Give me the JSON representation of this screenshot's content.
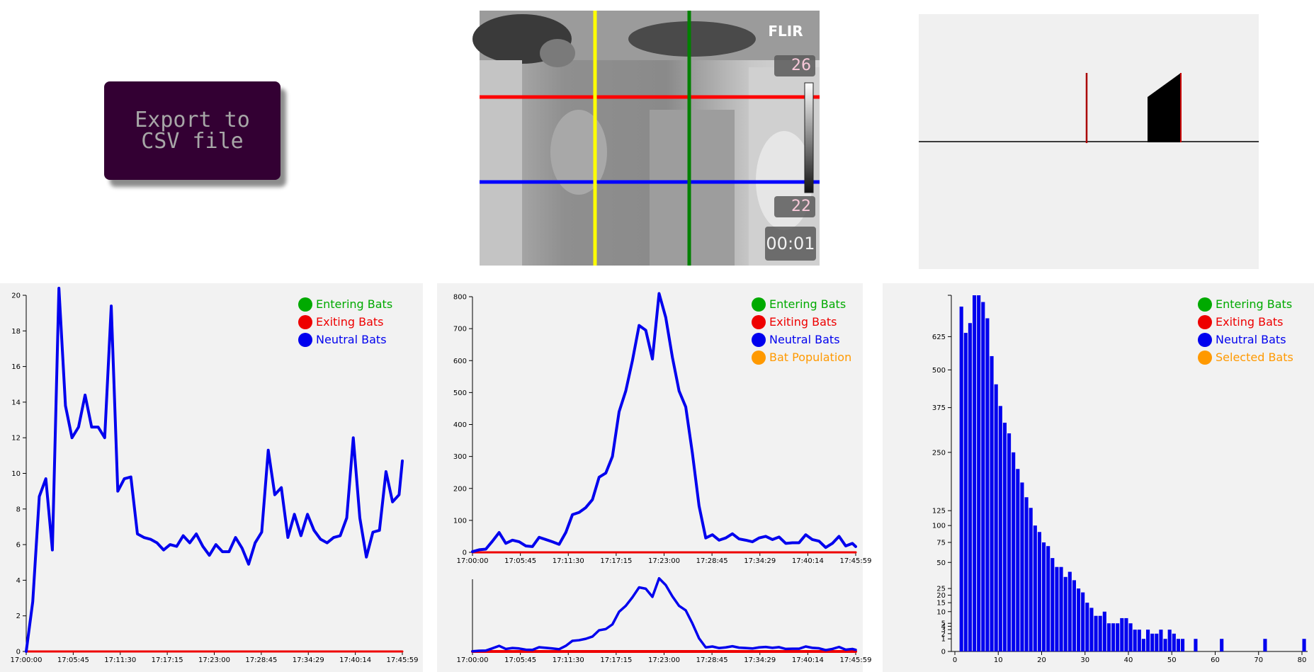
{
  "export_button": {
    "label": "Export to\nCSV file"
  },
  "thermal": {
    "brand": "FLIR",
    "scale_max": "26",
    "scale_min": "22",
    "timer": "00:01",
    "line_colors": {
      "horizontal_top": "#ff0000",
      "horizontal_bottom": "#0000ff",
      "vertical_left": "#ffff00",
      "vertical_right": "#008000"
    }
  },
  "colors": {
    "entering": "#00aa00",
    "exiting": "#ee0000",
    "neutral": "#0000ee",
    "orange": "#ff9900",
    "panel_bg": "#f2f2f2"
  },
  "legend_panel1": [
    {
      "label": "Entering Bats",
      "color": "#00aa00"
    },
    {
      "label": "Exiting Bats",
      "color": "#ee0000"
    },
    {
      "label": "Neutral Bats",
      "color": "#0000ee"
    }
  ],
  "legend_panel2": [
    {
      "label": "Entering Bats",
      "color": "#00aa00"
    },
    {
      "label": "Exiting Bats",
      "color": "#ee0000"
    },
    {
      "label": "Neutral Bats",
      "color": "#0000ee"
    },
    {
      "label": "Bat Population",
      "color": "#ff9900"
    }
  ],
  "legend_panel3": [
    {
      "label": "Entering Bats",
      "color": "#00aa00"
    },
    {
      "label": "Exiting Bats",
      "color": "#ee0000"
    },
    {
      "label": "Neutral Bats",
      "color": "#0000ee"
    },
    {
      "label": "Selected Bats",
      "color": "#ff9900"
    }
  ],
  "chart_data": [
    {
      "type": "line",
      "panel": "bat-counts-line-chart",
      "x_tick_labels": [
        "17:00:00",
        "17:05:45",
        "17:11:30",
        "17:17:15",
        "17:23:00",
        "17:28:45",
        "17:34:29",
        "17:40:14",
        "17:45:59"
      ],
      "ylim": [
        0,
        20
      ],
      "y_ticks": [
        0,
        2,
        4,
        6,
        8,
        10,
        12,
        14,
        16,
        18,
        20
      ],
      "x_range_minutes": [
        0,
        46
      ],
      "series": [
        {
          "name": "Neutral Bats",
          "color": "#0000ee",
          "x_minutes": [
            0,
            0.8,
            1.6,
            2.4,
            3.2,
            4.0,
            4.8,
            5.6,
            6.4,
            7.2,
            8.0,
            8.8,
            9.6,
            10.4,
            11.2,
            12.0,
            12.8,
            13.6,
            14.4,
            15.2,
            16.0,
            16.8,
            17.6,
            18.4,
            19.2,
            20.0,
            20.8,
            21.6,
            22.4,
            23.2,
            24.0,
            24.8,
            25.6,
            26.4,
            27.2,
            28.0,
            28.8,
            29.6,
            30.4,
            31.2,
            32.0,
            32.8,
            33.6,
            34.4,
            35.2,
            36.0,
            36.8,
            37.6,
            38.4,
            39.2,
            40.0,
            40.8,
            41.6,
            42.4,
            43.2,
            44.0,
            44.8,
            45.6,
            46.0
          ],
          "values": [
            0,
            2.8,
            8.7,
            9.7,
            5.7,
            20.4,
            13.8,
            12.0,
            12.6,
            14.4,
            12.6,
            12.6,
            12.0,
            19.4,
            9.0,
            9.7,
            9.8,
            6.6,
            6.4,
            6.3,
            6.1,
            5.7,
            6.0,
            5.9,
            6.5,
            6.1,
            6.6,
            5.9,
            5.4,
            6.0,
            5.6,
            5.6,
            6.4,
            5.8,
            4.9,
            6.1,
            6.7,
            11.3,
            8.8,
            9.2,
            6.4,
            7.7,
            6.5,
            7.7,
            6.8,
            6.3,
            6.1,
            6.4,
            6.5,
            7.5,
            12.0,
            7.5,
            5.3,
            6.7,
            6.8,
            10.1,
            8.4,
            8.8,
            10.7
          ]
        },
        {
          "name": "Exiting Bats",
          "color": "#ee0000",
          "x_minutes": [
            0,
            46
          ],
          "values": [
            0,
            0
          ]
        }
      ]
    },
    {
      "type": "line",
      "panel": "bat-population-line-chart",
      "x_tick_labels": [
        "17:00:00",
        "17:05:45",
        "17:11:30",
        "17:17:15",
        "17:23:00",
        "17:28:45",
        "17:34:29",
        "17:40:14",
        "17:45:59"
      ],
      "ylim": [
        0,
        800
      ],
      "y_ticks": [
        0,
        100,
        200,
        300,
        400,
        500,
        600,
        700,
        800
      ],
      "series": [
        {
          "name": "Neutral Bats",
          "color": "#0000ee",
          "x_minutes": [
            0,
            0.8,
            1.6,
            2.4,
            3.2,
            4.0,
            4.8,
            5.6,
            6.4,
            7.2,
            8.0,
            8.8,
            9.6,
            10.4,
            11.2,
            12.0,
            12.8,
            13.6,
            14.4,
            15.2,
            16.0,
            16.8,
            17.6,
            18.4,
            19.2,
            20.0,
            20.8,
            21.6,
            22.4,
            23.2,
            24.0,
            24.8,
            25.6,
            26.4,
            27.2,
            28.0,
            28.8,
            29.6,
            30.4,
            31.2,
            32.0,
            32.8,
            33.6,
            34.4,
            35.2,
            36.0,
            36.8,
            37.6,
            38.4,
            39.2,
            40.0,
            40.8,
            41.6,
            42.4,
            43.2,
            44.0,
            44.8,
            45.6,
            46.0
          ],
          "values": [
            2,
            8,
            10,
            35,
            62,
            28,
            38,
            33,
            20,
            18,
            47,
            40,
            33,
            25,
            62,
            118,
            125,
            140,
            165,
            235,
            248,
            300,
            440,
            505,
            600,
            710,
            695,
            605,
            810,
            735,
            610,
            505,
            455,
            310,
            145,
            45,
            55,
            38,
            45,
            58,
            42,
            38,
            33,
            45,
            50,
            40,
            48,
            28,
            30,
            30,
            55,
            40,
            35,
            15,
            28,
            50,
            20,
            28,
            18
          ]
        },
        {
          "name": "Bat Population",
          "color": "#ff9900",
          "x_minutes": [
            0,
            46
          ],
          "values": [
            0,
            0
          ]
        },
        {
          "name": "Exiting Bats",
          "color": "#ee0000",
          "x_minutes": [
            0,
            46
          ],
          "values": [
            0,
            0
          ]
        }
      ],
      "overview": {
        "x_tick_labels": [
          "17:00:00",
          "17:05:45",
          "17:11:30",
          "17:17:15",
          "17:23:00",
          "17:28:45",
          "17:34:29",
          "17:40:14",
          "17:45:59"
        ]
      }
    },
    {
      "type": "bar",
      "panel": "bat-histogram",
      "x_ticks": [
        0,
        10,
        20,
        30,
        40,
        50,
        60,
        70,
        80
      ],
      "y_tick_labels": [
        "0",
        "1",
        "2",
        "3",
        "4",
        "5",
        "10",
        "15",
        "20",
        "25",
        "50",
        "75",
        "100",
        "125",
        "250",
        "375",
        "500",
        "625"
      ],
      "y_scale": "sqrt",
      "ylim": [
        0,
        800
      ],
      "bin_width": 1,
      "x_start": 0,
      "values": [
        0,
        750,
        640,
        680,
        800,
        800,
        770,
        700,
        550,
        450,
        380,
        330,
        300,
        250,
        210,
        180,
        150,
        130,
        100,
        90,
        75,
        70,
        55,
        45,
        45,
        35,
        40,
        32,
        25,
        22,
        15,
        12,
        8,
        8,
        10,
        5,
        5,
        5,
        7,
        7,
        5,
        3,
        3,
        1,
        3,
        2,
        2,
        3,
        1,
        3,
        2,
        1,
        1,
        0,
        0,
        1,
        0,
        0,
        0,
        0,
        0,
        1,
        0,
        0,
        0,
        0,
        0,
        0,
        0,
        0,
        0,
        1,
        0,
        0,
        0,
        0,
        0,
        0,
        0,
        0,
        1
      ],
      "color": "#0000ee"
    }
  ]
}
